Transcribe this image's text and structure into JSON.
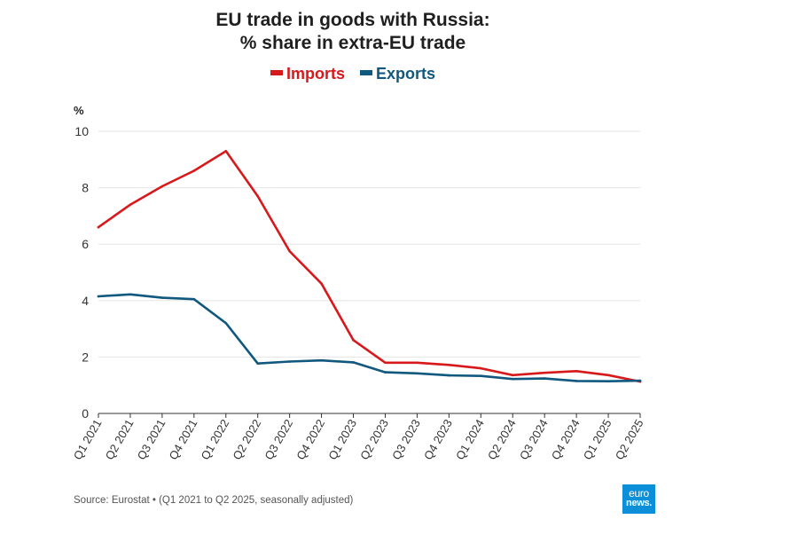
{
  "title_line1": "EU trade in goods with Russia:",
  "title_line2": "% share in extra-EU trade",
  "unit": "%",
  "source": "Source: Eurostat • (Q1 2021 to Q2 2025, seasonally adjusted)",
  "logo": {
    "line1": "euro",
    "line2": "news."
  },
  "colors": {
    "imports": "#d7191c",
    "exports": "#11587f",
    "grid": "#e6e6e6",
    "axis": "#333333"
  },
  "chart_data": {
    "type": "line",
    "title": "EU trade in goods with Russia: % share in extra-EU trade",
    "ylabel": "%",
    "ylim": [
      0,
      10
    ],
    "yticks": [
      "0",
      "2",
      "4",
      "6",
      "8",
      "10"
    ],
    "legend_position": "top-center",
    "grid": true,
    "categories": [
      "Q1 2021",
      "Q2 2021",
      "Q3 2021",
      "Q4 2021",
      "Q1 2022",
      "Q2 2022",
      "Q3 2022",
      "Q4 2022",
      "Q1 2023",
      "Q2 2023",
      "Q3 2023",
      "Q4 2023",
      "Q1 2024",
      "Q2 2024",
      "Q3 2024",
      "Q4 2024",
      "Q1 2025",
      "Q2 2025"
    ],
    "series": [
      {
        "name": "Imports",
        "values": [
          6.6,
          7.4,
          8.05,
          8.6,
          9.3,
          7.7,
          5.75,
          4.6,
          2.6,
          1.8,
          1.8,
          1.72,
          1.6,
          1.36,
          1.44,
          1.5,
          1.36,
          1.13
        ]
      },
      {
        "name": "Exports",
        "values": [
          4.15,
          4.22,
          4.1,
          4.05,
          3.2,
          1.77,
          1.84,
          1.88,
          1.81,
          1.46,
          1.42,
          1.35,
          1.33,
          1.22,
          1.24,
          1.15,
          1.14,
          1.16
        ]
      }
    ]
  }
}
